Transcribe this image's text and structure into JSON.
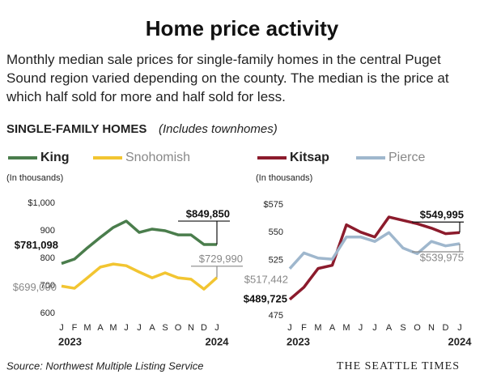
{
  "title": "Home price activity",
  "subtitle": "Monthly median sale prices for single-family homes in the central Puget Sound region varied depending on the county. The median is the price at which half sold for more and half sold for less.",
  "section": "SINGLE-FAMILY HOMES",
  "section_note": "(Includes townhomes)",
  "source": "Source: Northwest Multiple Listing Service",
  "credit": "THE SEATTLE TIMES",
  "chart_data": [
    {
      "type": "line",
      "ylabel": "(In thousands)",
      "categories": [
        "J",
        "F",
        "M",
        "A",
        "M",
        "J",
        "J",
        "A",
        "S",
        "O",
        "N",
        "D",
        "J"
      ],
      "year_labels": [
        "2023",
        "2024"
      ],
      "ylim": [
        600,
        1000
      ],
      "yticks": [
        600,
        700,
        800,
        900,
        {
          "value": 1000,
          "label": "$1,000"
        }
      ],
      "series": [
        {
          "name": "King",
          "color": "#4a7d4c",
          "values": [
            781.098,
            797,
            838,
            876,
            912,
            935,
            894,
            906,
            900,
            885,
            885,
            850,
            849.85
          ],
          "value_labels": [
            "$781,098",
            null,
            null,
            null,
            null,
            null,
            null,
            null,
            null,
            null,
            null,
            null,
            "$849,850"
          ]
        },
        {
          "name": "Snohomish",
          "color": "#f2c531",
          "values": [
            699.0,
            691,
            729,
            768,
            779,
            773,
            750,
            729,
            747,
            729,
            724,
            688,
            729.99
          ],
          "value_labels": [
            "$699,000",
            null,
            null,
            null,
            null,
            null,
            null,
            null,
            null,
            null,
            null,
            null,
            "$729,990"
          ]
        }
      ]
    },
    {
      "type": "line",
      "ylabel": "(In thousands)",
      "categories": [
        "J",
        "F",
        "M",
        "A",
        "M",
        "J",
        "J",
        "A",
        "S",
        "O",
        "N",
        "D",
        "J"
      ],
      "year_labels": [
        "2023",
        "2024"
      ],
      "ylim": [
        475,
        575
      ],
      "yticks": [
        475,
        525,
        550,
        {
          "value": 575,
          "label": "$575"
        }
      ],
      "series": [
        {
          "name": "Kitsap",
          "color": "#8c1b2c",
          "values": [
            489.725,
            500.7,
            517.6,
            520.5,
            557,
            550.4,
            546,
            564,
            561,
            558,
            554,
            549,
            549.995
          ],
          "value_labels": [
            "$489,725",
            null,
            null,
            null,
            null,
            null,
            null,
            null,
            null,
            null,
            null,
            null,
            "$549,995"
          ]
        },
        {
          "name": "Pierce",
          "color": "#9fb7cd",
          "values": [
            517.442,
            531.6,
            527,
            526,
            546,
            546,
            542,
            550,
            536,
            531,
            542,
            538,
            539.975
          ],
          "value_labels": [
            "$517,442",
            null,
            null,
            null,
            null,
            null,
            null,
            null,
            null,
            null,
            null,
            null,
            "$539,975"
          ]
        }
      ]
    }
  ]
}
